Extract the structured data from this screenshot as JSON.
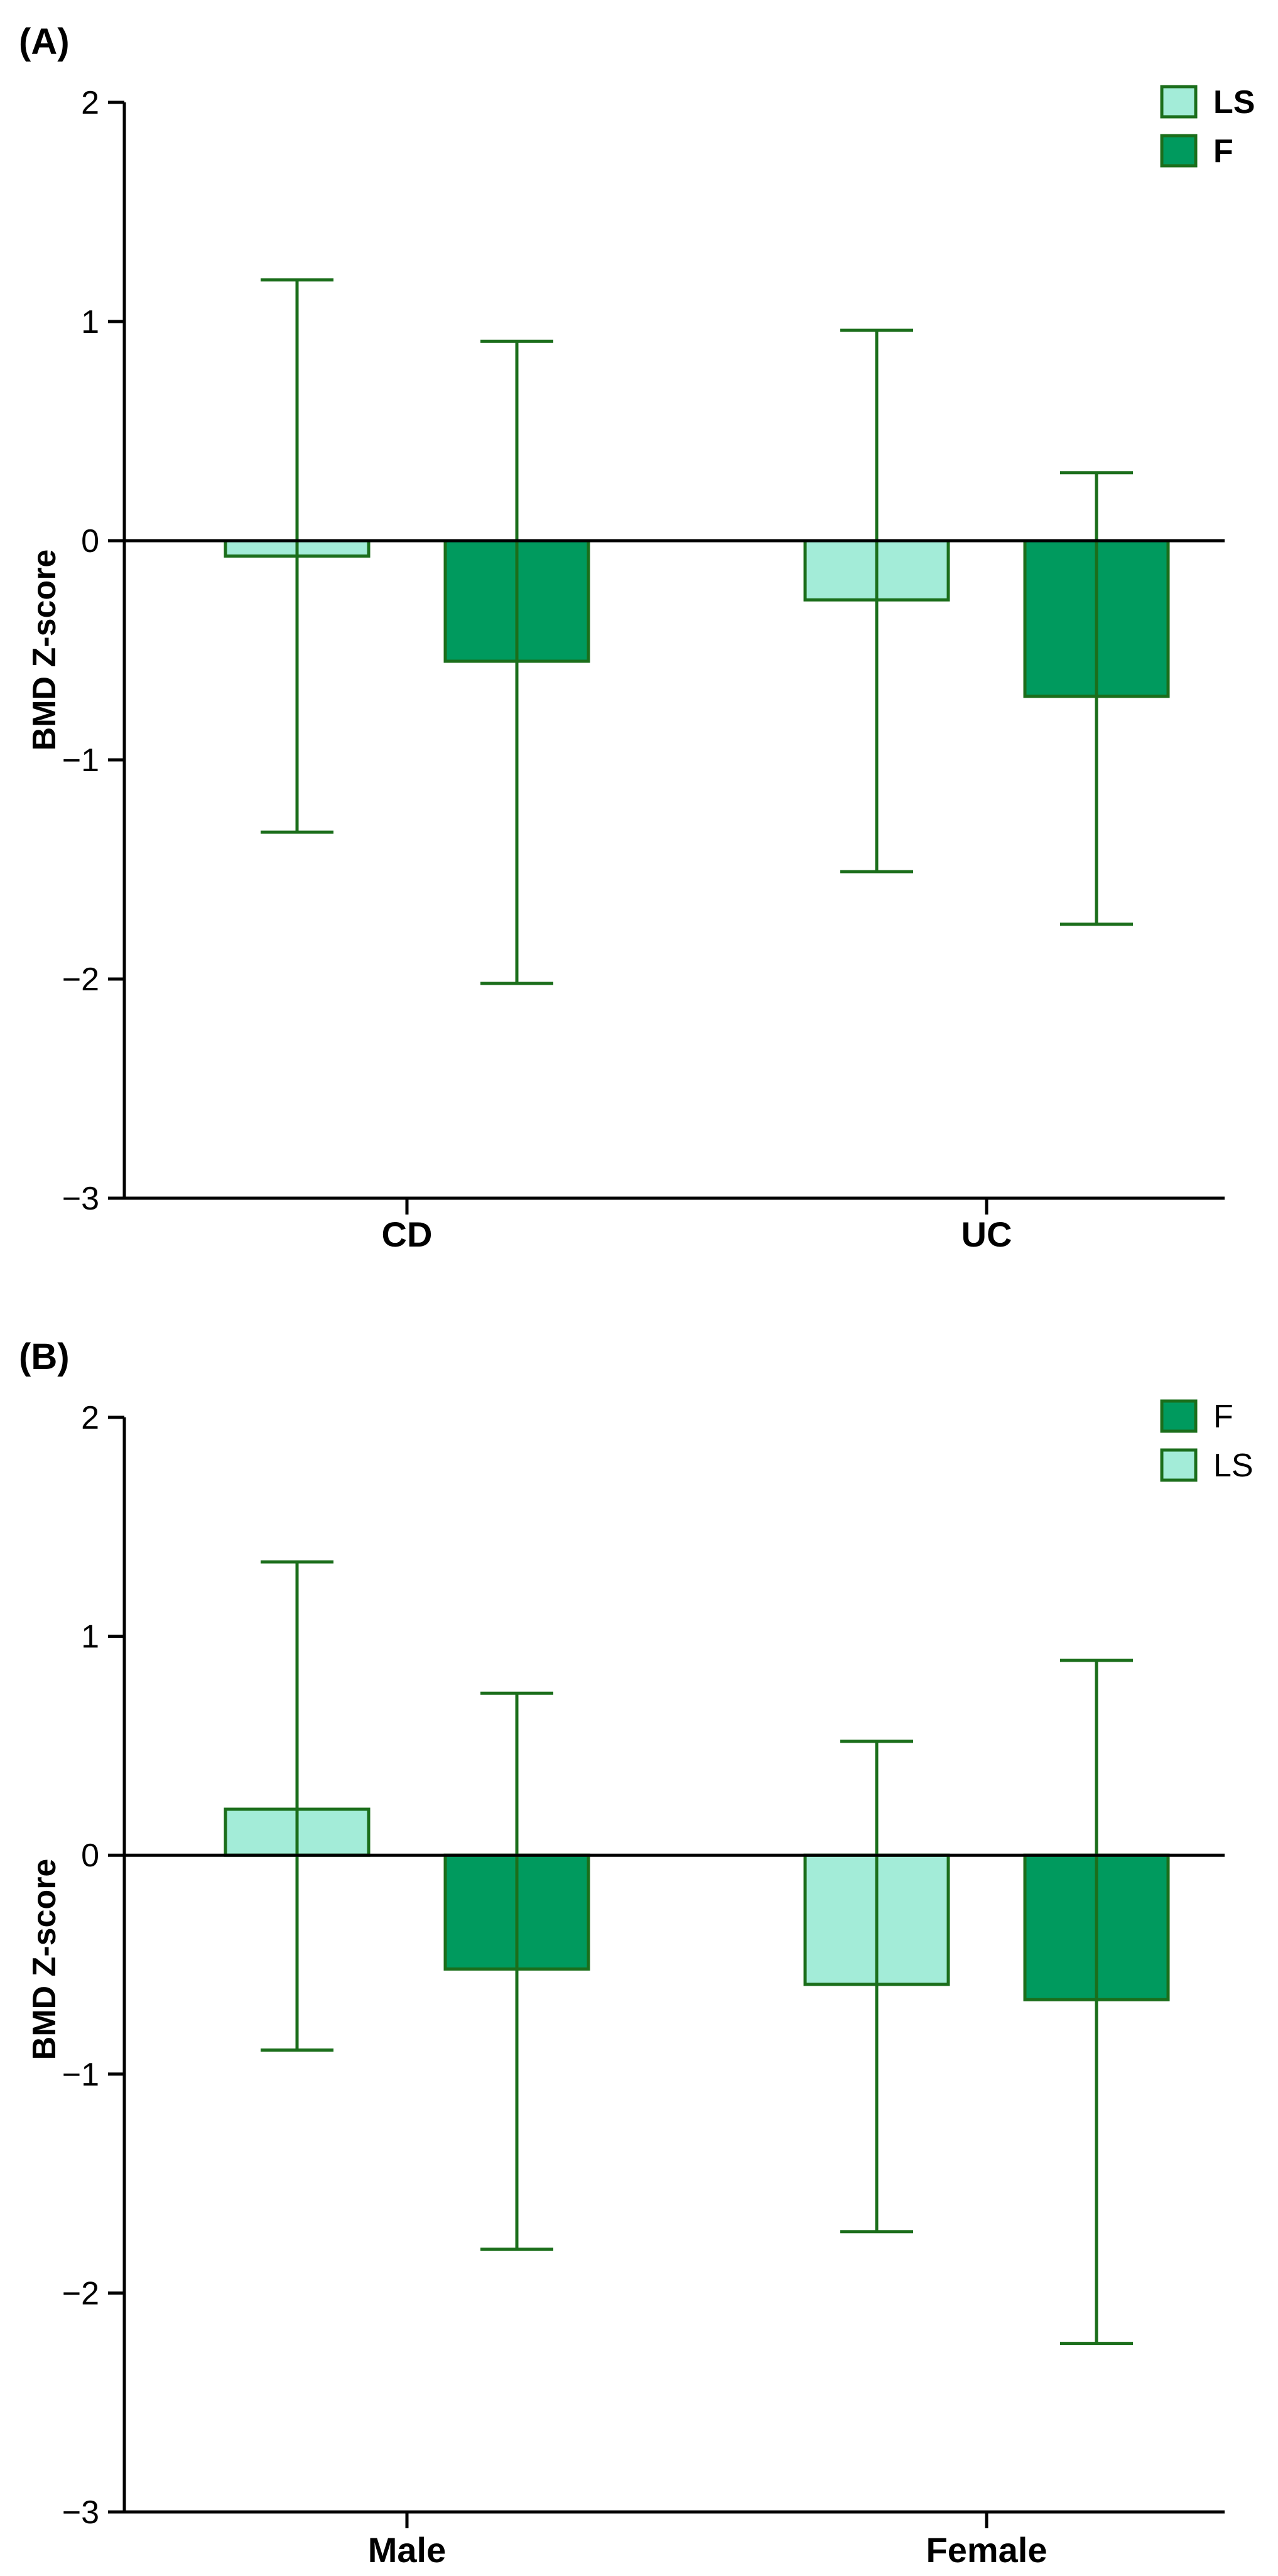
{
  "colors": {
    "ls": "#a3ecd8",
    "f": "#009a5e",
    "stroke": "#1b6e1b",
    "axis": "#000000"
  },
  "chart_data": [
    {
      "panel": "(A)",
      "type": "bar",
      "categories": [
        "CD",
        "UC"
      ],
      "ylabel": "BMD Z-score",
      "xlabel": "",
      "ylim": [
        -3,
        2
      ],
      "yticks": [
        2,
        1,
        0,
        -1,
        -2,
        -3
      ],
      "ytick_labels": [
        "2",
        "1",
        "0",
        "−1",
        "−2",
        "−3"
      ],
      "legend": {
        "position": "top-right",
        "style": "bold",
        "entries": [
          {
            "label": "LS",
            "series": "LS"
          },
          {
            "label": "F",
            "series": "F"
          }
        ]
      },
      "series": [
        {
          "name": "LS",
          "color": "ls",
          "values": [
            -0.07,
            -0.27
          ],
          "err_high": [
            1.19,
            0.96
          ],
          "err_low": [
            -1.33,
            -1.51
          ]
        },
        {
          "name": "F",
          "color": "f",
          "values": [
            -0.55,
            -0.71
          ],
          "err_high": [
            0.91,
            0.31
          ],
          "err_low": [
            -2.02,
            -1.75
          ]
        }
      ]
    },
    {
      "panel": "(B)",
      "type": "bar",
      "categories": [
        "Male",
        "Female"
      ],
      "ylabel": "BMD Z-score",
      "xlabel": "",
      "ylim": [
        -3,
        2
      ],
      "yticks": [
        2,
        1,
        0,
        -1,
        -2,
        -3
      ],
      "ytick_labels": [
        "2",
        "1",
        "0",
        "−1",
        "−2",
        "−3"
      ],
      "legend": {
        "position": "top-right",
        "style": "normal",
        "entries": [
          {
            "label": "F",
            "series": "F"
          },
          {
            "label": "LS",
            "series": "LS"
          }
        ]
      },
      "series": [
        {
          "name": "LS",
          "color": "ls",
          "values": [
            0.21,
            -0.59
          ],
          "err_high": [
            1.34,
            0.52
          ],
          "err_low": [
            -0.89,
            -1.72
          ]
        },
        {
          "name": "F",
          "color": "f",
          "values": [
            -0.52,
            -0.66
          ],
          "err_high": [
            0.74,
            0.89
          ],
          "err_low": [
            -1.8,
            -2.23
          ]
        }
      ]
    }
  ]
}
